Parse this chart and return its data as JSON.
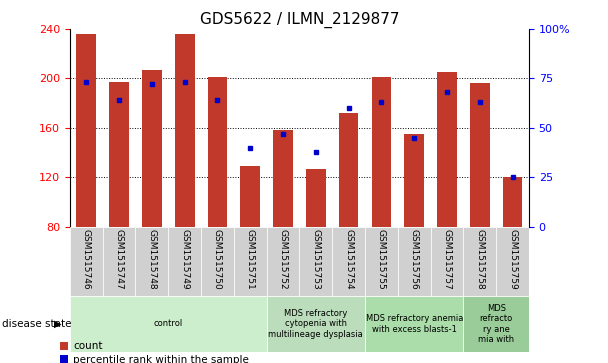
{
  "title": "GDS5622 / ILMN_2129877",
  "samples": [
    "GSM1515746",
    "GSM1515747",
    "GSM1515748",
    "GSM1515749",
    "GSM1515750",
    "GSM1515751",
    "GSM1515752",
    "GSM1515753",
    "GSM1515754",
    "GSM1515755",
    "GSM1515756",
    "GSM1515757",
    "GSM1515758",
    "GSM1515759"
  ],
  "count_values": [
    236,
    197,
    207,
    236,
    201,
    129,
    158,
    127,
    172,
    201,
    155,
    205,
    196,
    120
  ],
  "percentile_values": [
    73,
    64,
    72,
    73,
    64,
    40,
    47,
    38,
    60,
    63,
    45,
    68,
    63,
    25
  ],
  "y_min": 80,
  "y_max": 240,
  "y_ticks_left": [
    80,
    120,
    160,
    200,
    240
  ],
  "y_ticks_right": [
    0,
    25,
    50,
    75,
    100
  ],
  "bar_color": "#C0392B",
  "percentile_color": "#0000CC",
  "disease_groups": [
    {
      "label": "control",
      "start": 0,
      "end": 6,
      "color": "#cceecc"
    },
    {
      "label": "MDS refractory\ncytopenia with\nmultilineage dysplasia",
      "start": 6,
      "end": 9,
      "color": "#bbddbb"
    },
    {
      "label": "MDS refractory anemia\nwith excess blasts-1",
      "start": 9,
      "end": 12,
      "color": "#aaddaa"
    },
    {
      "label": "MDS\nrefracto\nry ane\nmia with",
      "start": 12,
      "end": 14,
      "color": "#99cc99"
    }
  ],
  "disease_state_label": "disease state",
  "legend_count_label": "count",
  "legend_percentile_label": "percentile rank within the sample",
  "title_fontsize": 11,
  "bar_width": 0.6
}
